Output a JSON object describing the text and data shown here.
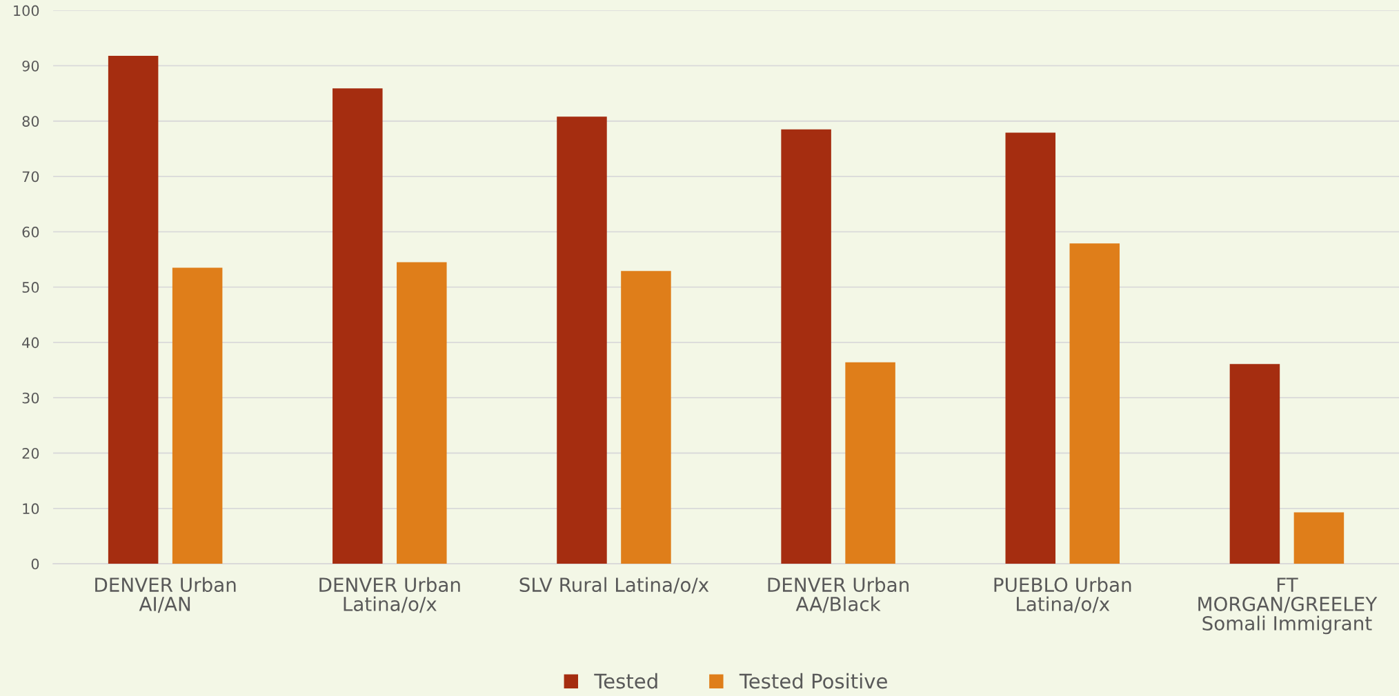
{
  "chart_data": {
    "type": "bar",
    "categories": [
      "DENVER Urban\nAI/AN",
      "DENVER Urban\nLatina/o/x",
      "SLV Rural Latina/o/x",
      "DENVER Urban\nAA/Black",
      "PUEBLO Urban\nLatina/o/x",
      "FT\nMORGAN/GREELEY\nSomali Immigrant"
    ],
    "series": [
      {
        "name": "Tested",
        "color": "#a52d10",
        "values": [
          91.8,
          85.9,
          80.8,
          78.5,
          77.9,
          36.1
        ]
      },
      {
        "name": "Tested Positive",
        "color": "#df7e1a",
        "values": [
          53.5,
          54.5,
          52.9,
          36.4,
          57.9,
          9.3
        ]
      }
    ],
    "ylim": [
      0,
      100
    ],
    "yticks": [
      0,
      10,
      20,
      30,
      40,
      50,
      60,
      70,
      80,
      90,
      100
    ],
    "grid": "y",
    "legend": "bottom"
  }
}
